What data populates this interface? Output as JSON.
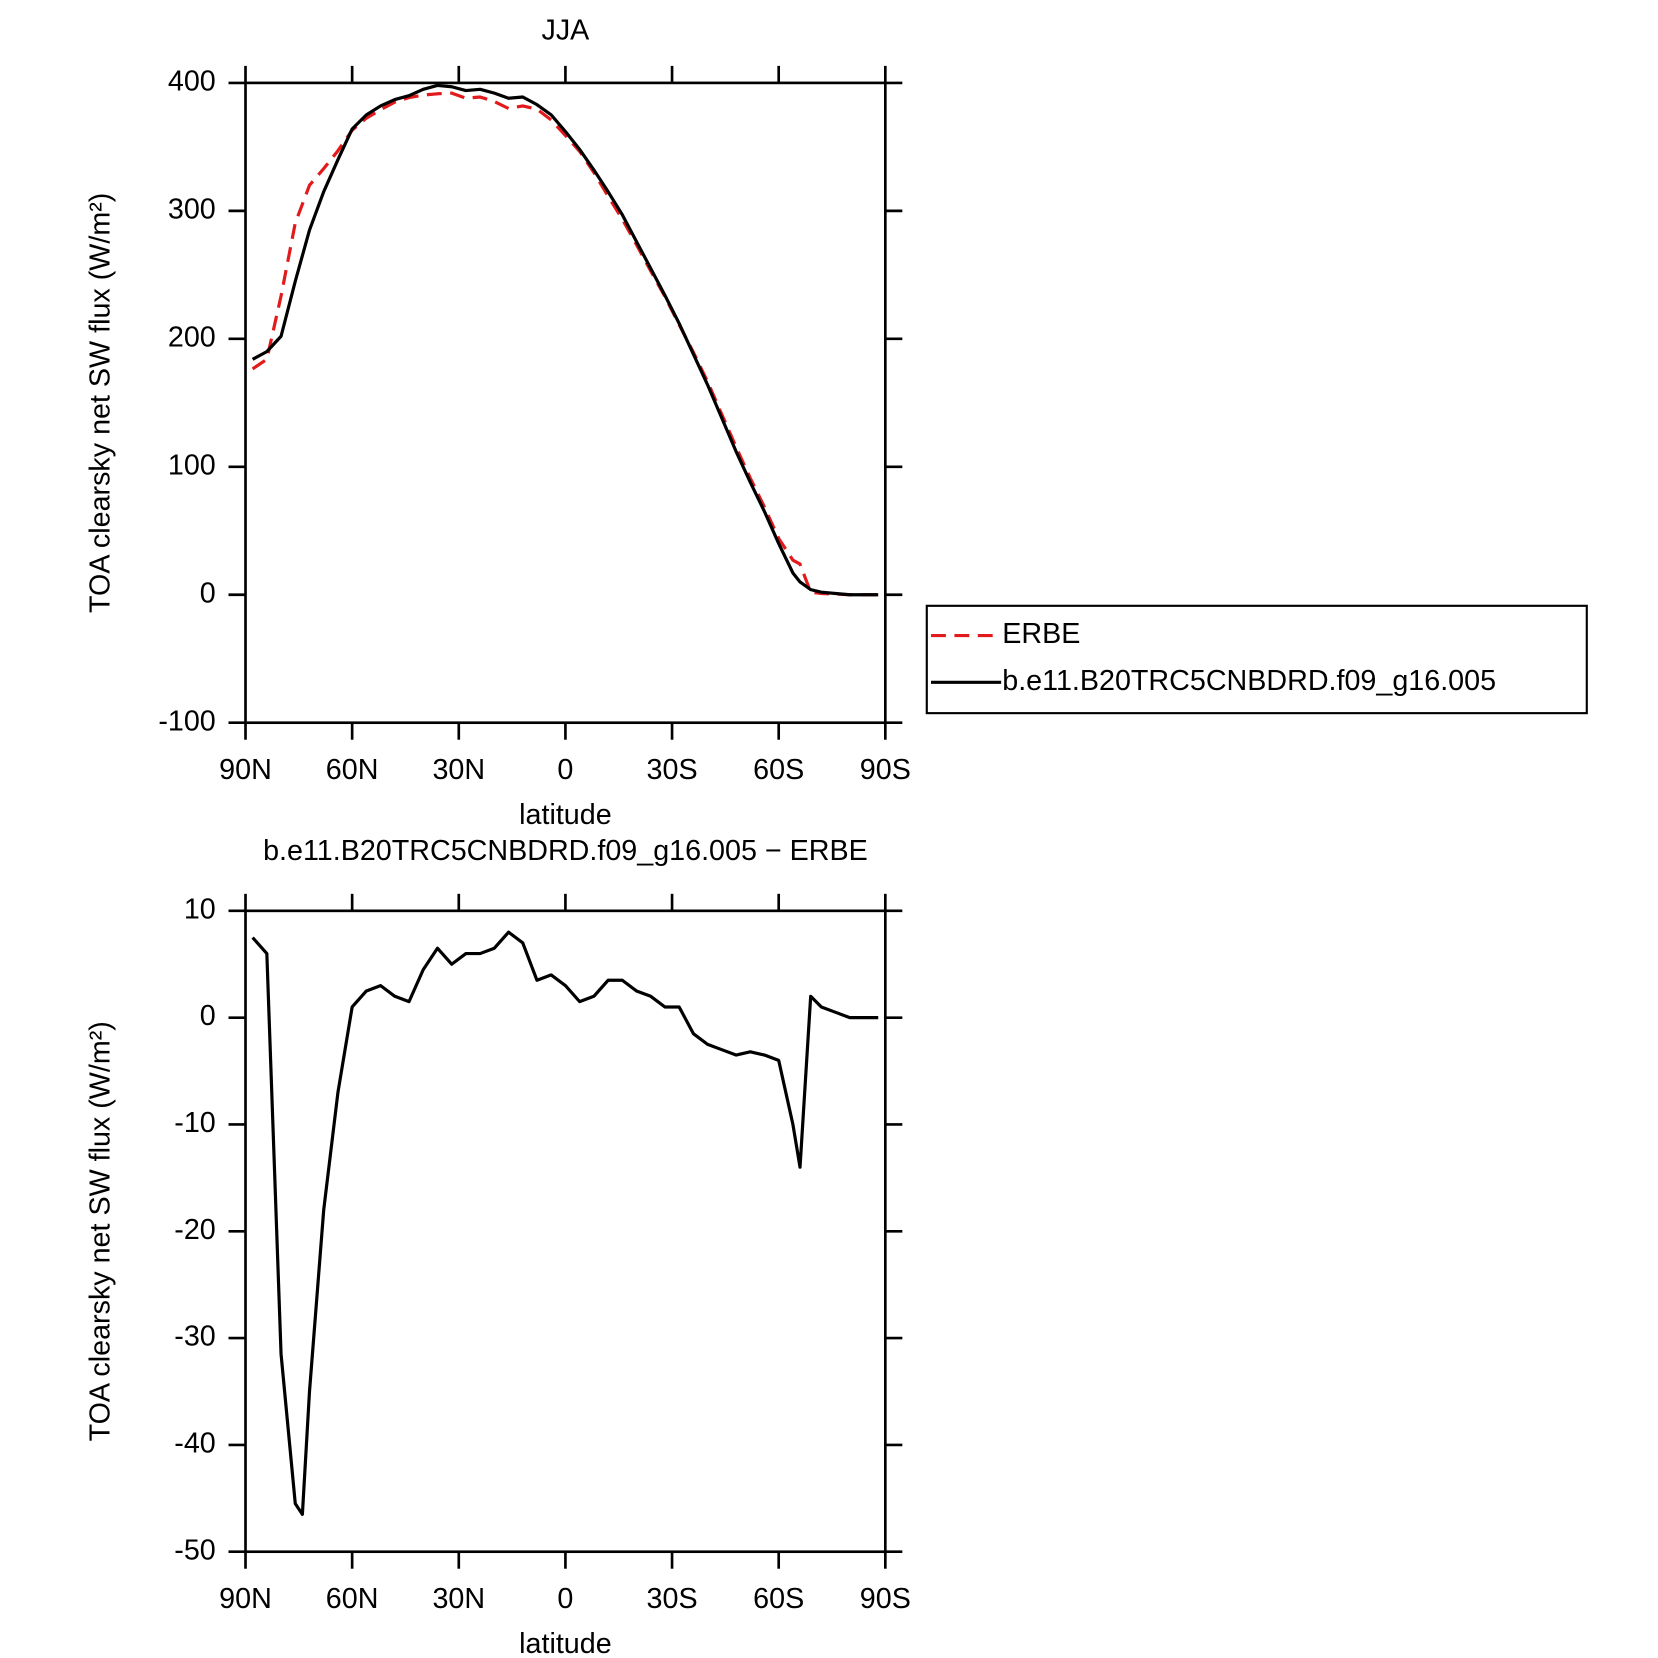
{
  "chart_data": [
    {
      "type": "line",
      "title": "JJA",
      "xlabel": "latitude",
      "ylabel": "TOA clearsky net SW flux (W/m²)",
      "x": [
        88,
        84,
        80,
        76,
        72,
        68,
        64,
        60,
        56,
        52,
        48,
        44,
        40,
        36,
        32,
        28,
        24,
        20,
        16,
        12,
        8,
        4,
        0,
        -4,
        -8,
        -12,
        -16,
        -20,
        -24,
        -28,
        -32,
        -36,
        -40,
        -44,
        -48,
        -52,
        -56,
        -60,
        -64,
        -66,
        -69,
        -72,
        -76,
        -80,
        -84,
        -88
      ],
      "xlim": [
        90,
        -90
      ],
      "xticks": [
        {
          "value": 90,
          "label": "90N"
        },
        {
          "value": 60,
          "label": "60N"
        },
        {
          "value": 30,
          "label": "30N"
        },
        0,
        {
          "value": -30,
          "label": "30S"
        },
        {
          "value": -60,
          "label": "60S"
        },
        {
          "value": -90,
          "label": "90S"
        }
      ],
      "ylim": [
        -100,
        400
      ],
      "yticks": [
        -100,
        0,
        100,
        200,
        300,
        400
      ],
      "legend": "right",
      "series": [
        {
          "name": "ERBE",
          "color": "#e31a1c",
          "linestyle": "dashed",
          "values": [
            176.5,
            184,
            233.5,
            290.5,
            320,
            333,
            347,
            363,
            372.5,
            379,
            385,
            388.5,
            390.5,
            391.5,
            392,
            388,
            389,
            385.5,
            380,
            382,
            379.5,
            371,
            359,
            346.5,
            330,
            311.5,
            293.5,
            273.5,
            253,
            233,
            211,
            189.5,
            166.5,
            141,
            115.5,
            91.2,
            68.5,
            44,
            27,
            24,
            2,
            1,
            0.5,
            0,
            0,
            0
          ]
        },
        {
          "name": "b.e11.B20TRC5CNBDRD.f09_g16.005",
          "color": "#000000",
          "linestyle": "solid",
          "values": [
            184,
            190,
            202,
            245,
            285,
            315,
            340,
            364,
            375,
            382,
            387,
            390,
            395,
            398,
            397,
            394,
            395,
            392,
            388,
            389,
            383,
            375,
            362,
            348,
            332,
            315,
            297,
            276,
            255,
            234,
            212,
            188,
            164,
            138,
            112,
            88,
            65,
            40,
            17,
            10,
            4,
            2,
            1,
            0,
            0,
            0
          ]
        }
      ]
    },
    {
      "type": "line",
      "title": "b.e11.B20TRC5CNBDRD.f09_g16.005 − ERBE",
      "xlabel": "latitude",
      "ylabel": "TOA clearsky net SW flux (W/m²)",
      "x": [
        88,
        84,
        80,
        76,
        74,
        72,
        68,
        64,
        60,
        56,
        52,
        48,
        44,
        40,
        36,
        32,
        28,
        24,
        20,
        16,
        12,
        8,
        4,
        0,
        -4,
        -8,
        -12,
        -16,
        -20,
        -24,
        -28,
        -32,
        -36,
        -40,
        -44,
        -48,
        -52,
        -56,
        -60,
        -64,
        -66,
        -69,
        -72,
        -76,
        -80,
        -84,
        -88
      ],
      "xlim": [
        90,
        -90
      ],
      "xticks": [
        {
          "value": 90,
          "label": "90N"
        },
        {
          "value": 60,
          "label": "60N"
        },
        {
          "value": 30,
          "label": "30N"
        },
        0,
        {
          "value": -30,
          "label": "30S"
        },
        {
          "value": -60,
          "label": "60S"
        },
        {
          "value": -90,
          "label": "90S"
        }
      ],
      "ylim": [
        -50,
        10
      ],
      "yticks": [
        -50,
        -40,
        -30,
        -20,
        -10,
        0,
        10
      ],
      "series": [
        {
          "color": "#000000",
          "linestyle": "solid",
          "values": [
            7.5,
            6,
            -31.5,
            -45.5,
            -46.5,
            -35,
            -18,
            -7,
            1,
            2.5,
            3,
            2,
            1.5,
            4.5,
            6.5,
            5,
            6,
            6,
            6.5,
            8,
            7,
            3.5,
            4,
            3,
            1.5,
            2,
            3.5,
            3.5,
            2.5,
            2,
            1,
            1,
            -1.5,
            -2.5,
            -3,
            -3.5,
            -3.2,
            -3.5,
            -4,
            -10,
            -14,
            2,
            1,
            0.5,
            0,
            0,
            0
          ]
        }
      ]
    }
  ]
}
